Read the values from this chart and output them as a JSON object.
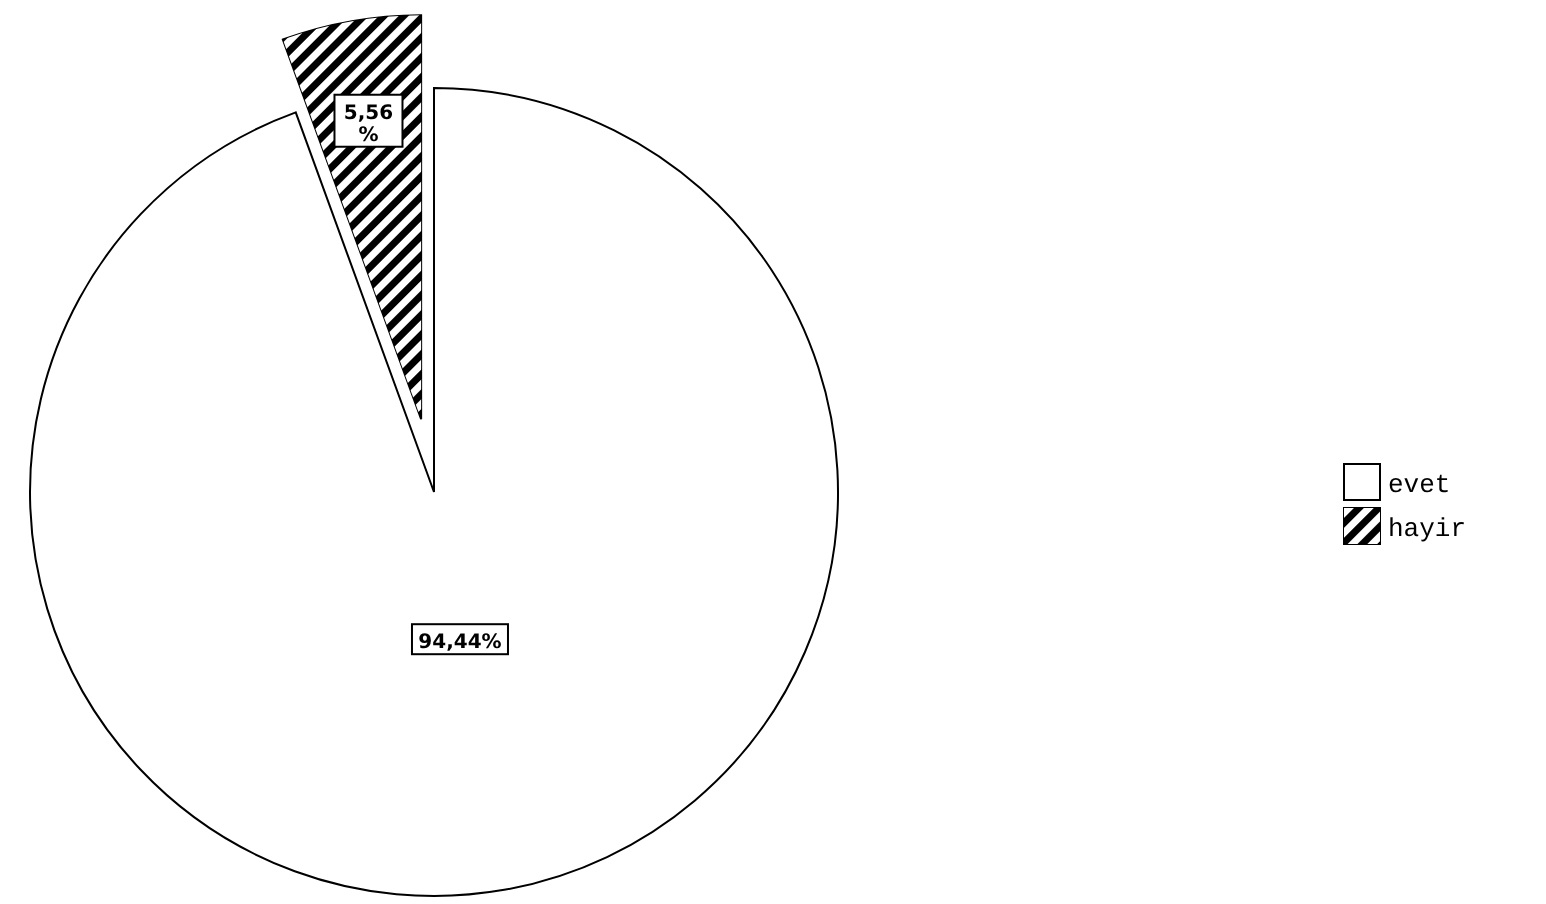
{
  "chart_data": {
    "type": "pie",
    "categories": [
      "evet",
      "hayir"
    ],
    "values": [
      94.44,
      5.56
    ],
    "colors": [
      "#ffffff",
      "#000000"
    ],
    "value_labels": [
      "94,44%",
      "5,56 %"
    ],
    "legend": "right"
  }
}
